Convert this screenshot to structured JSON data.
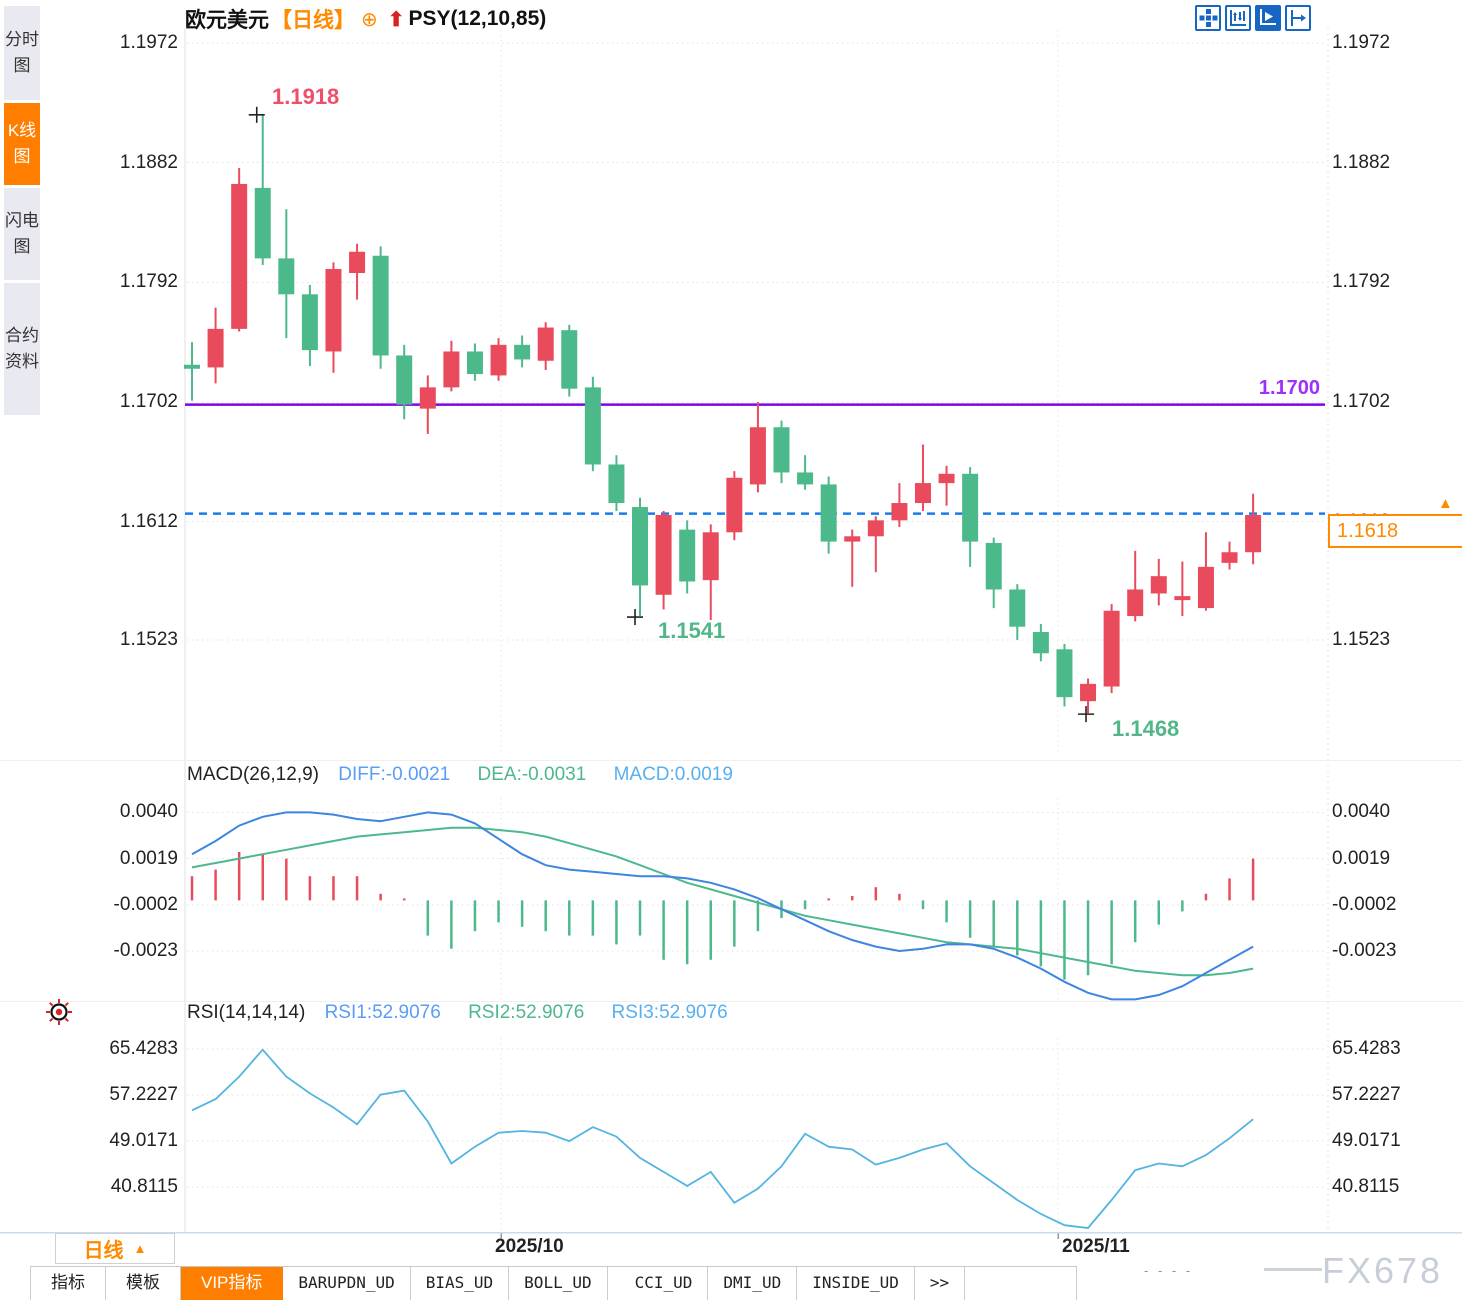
{
  "window_title": {
    "symbol": "欧元美元",
    "period_tag": "【日线】",
    "add_icon": "⊕",
    "psy_arrow": "⬆",
    "overlay_indicator": "PSY(12,10,85)"
  },
  "sidebar": {
    "tabs": [
      {
        "label": "分时图",
        "active": false
      },
      {
        "label": "K线图",
        "active": true
      },
      {
        "label": "闪电图",
        "active": false
      },
      {
        "label": "合约资料",
        "active": false
      }
    ]
  },
  "toolbar": {
    "icons": [
      "crosshair-icon",
      "axis-range-icon",
      "axis-play-icon",
      "pan-right-icon"
    ]
  },
  "price_panel": {
    "axis_labels": [
      "1.1972",
      "1.1882",
      "1.1792",
      "1.1702",
      "1.1612",
      "1.1523"
    ],
    "high_label": "1.1918",
    "low_label_1": "1.1541",
    "low_label_2": "1.1468",
    "hline_label": "1.1700",
    "current_price": "1.1618",
    "current_arrow": "▲"
  },
  "macd_panel": {
    "title": "MACD(26,12,9)",
    "diff_label": "DIFF:-0.0021",
    "dea_label": "DEA:-0.0031",
    "macd_label": "MACD:0.0019",
    "axis_labels": [
      "0.0040",
      "0.0019",
      "-0.0002",
      "-0.0023"
    ]
  },
  "rsi_panel": {
    "title": "RSI(14,14,14)",
    "rsi1_label": "RSI1:52.9076",
    "rsi2_label": "RSI2:52.9076",
    "rsi3_label": "RSI3:52.9076",
    "axis_labels": [
      "65.4283",
      "57.2227",
      "49.0171",
      "40.8115"
    ]
  },
  "x_axis": {
    "period_button": "日线",
    "period_arrow": "▲",
    "labels": [
      "2025/10",
      "2025/11"
    ],
    "placeholder_dashes": "- - - -"
  },
  "bottom_tabs": [
    {
      "label": "指标",
      "active": false,
      "mono": false
    },
    {
      "label": "模板",
      "active": false,
      "mono": false
    },
    {
      "label": "VIP指标",
      "active": true,
      "mono": false
    },
    {
      "label": "BARUPDN_UD",
      "active": false,
      "mono": true
    },
    {
      "label": "BIAS_UD",
      "active": false,
      "mono": true
    },
    {
      "label": "BOLL_UD",
      "active": false,
      "mono": true
    },
    {
      "label": "CCI_UD",
      "active": false,
      "mono": true
    },
    {
      "label": "DMI_UD",
      "active": false,
      "mono": true
    },
    {
      "label": "INSIDE_UD",
      "active": false,
      "mono": true
    },
    {
      "label": ">>",
      "active": false,
      "mono": true
    }
  ],
  "watermark": "FX678",
  "colors": {
    "up_candle": "#ea4b5c",
    "down_candle": "#4cb98a",
    "diff_line": "#3d85e0",
    "dea_line": "#4db88c",
    "rsi_line": "#52b5e0",
    "purple_level": "#7d05e6",
    "current_price_line": "#1a7ce8",
    "accent_orange": "#ff8a00",
    "high_label": "#ef5068",
    "low_label": "#52b788",
    "active_tab": "#ff7e00"
  },
  "chart_data": {
    "type": "candlestick",
    "title": "欧元美元 日线 (EUR/USD daily)",
    "color_convention": "red = up candle, green = down candle",
    "price_axis": [
      1.1972,
      1.1882,
      1.1792,
      1.1702,
      1.1612,
      1.1523
    ],
    "x_gridline_labels": [
      "2025/10",
      "2025/11"
    ],
    "levels": {
      "horizontal_line": 1.17,
      "current_price": 1.1618,
      "marked_high": 1.1918,
      "marked_low_1": 1.1541,
      "marked_low_2": 1.1468
    },
    "candles_ohlc": [
      [
        1.173,
        1.1747,
        1.1703,
        1.1727
      ],
      [
        1.1728,
        1.1773,
        1.1716,
        1.1757
      ],
      [
        1.1757,
        1.1878,
        1.1755,
        1.1866
      ],
      [
        1.1863,
        1.1918,
        1.1805,
        1.181
      ],
      [
        1.181,
        1.1847,
        1.175,
        1.1783
      ],
      [
        1.1783,
        1.179,
        1.1729,
        1.1741
      ],
      [
        1.174,
        1.1807,
        1.1724,
        1.1802
      ],
      [
        1.1799,
        1.1821,
        1.1779,
        1.1815
      ],
      [
        1.1812,
        1.1819,
        1.1727,
        1.1737
      ],
      [
        1.1737,
        1.1745,
        1.1689,
        1.17
      ],
      [
        1.1697,
        1.1722,
        1.1678,
        1.1713
      ],
      [
        1.1713,
        1.1748,
        1.171,
        1.174
      ],
      [
        1.174,
        1.1746,
        1.1718,
        1.1723
      ],
      [
        1.1722,
        1.175,
        1.1718,
        1.1745
      ],
      [
        1.1745,
        1.1752,
        1.1728,
        1.1734
      ],
      [
        1.1733,
        1.1762,
        1.1726,
        1.1758
      ],
      [
        1.1756,
        1.176,
        1.1706,
        1.1712
      ],
      [
        1.1713,
        1.1721,
        1.165,
        1.1655
      ],
      [
        1.1655,
        1.1662,
        1.162,
        1.1626
      ],
      [
        1.1623,
        1.163,
        1.1541,
        1.1564
      ],
      [
        1.1557,
        1.162,
        1.1546,
        1.1617
      ],
      [
        1.1606,
        1.1613,
        1.1558,
        1.1567
      ],
      [
        1.1568,
        1.161,
        1.1538,
        1.1604
      ],
      [
        1.1604,
        1.165,
        1.1598,
        1.1645
      ],
      [
        1.164,
        1.1702,
        1.1634,
        1.1683
      ],
      [
        1.1683,
        1.1688,
        1.1641,
        1.1649
      ],
      [
        1.1649,
        1.1662,
        1.1636,
        1.164
      ],
      [
        1.164,
        1.1646,
        1.1588,
        1.1597
      ],
      [
        1.1597,
        1.1606,
        1.1563,
        1.1601
      ],
      [
        1.1601,
        1.1616,
        1.1574,
        1.1613
      ],
      [
        1.1613,
        1.1641,
        1.1608,
        1.1626
      ],
      [
        1.1626,
        1.167,
        1.162,
        1.1641
      ],
      [
        1.1641,
        1.1654,
        1.1624,
        1.1648
      ],
      [
        1.1648,
        1.1653,
        1.1578,
        1.1597
      ],
      [
        1.1596,
        1.16,
        1.1547,
        1.1561
      ],
      [
        1.1561,
        1.1565,
        1.1523,
        1.1533
      ],
      [
        1.1529,
        1.1535,
        1.1507,
        1.1513
      ],
      [
        1.1516,
        1.152,
        1.1473,
        1.148
      ],
      [
        1.1477,
        1.1494,
        1.1468,
        1.149
      ],
      [
        1.1488,
        1.155,
        1.1483,
        1.1545
      ],
      [
        1.1541,
        1.159,
        1.1537,
        1.1561
      ],
      [
        1.1558,
        1.1584,
        1.1549,
        1.1571
      ],
      [
        1.1553,
        1.1582,
        1.1541,
        1.1556
      ],
      [
        1.1547,
        1.1604,
        1.1545,
        1.1578
      ],
      [
        1.1581,
        1.1597,
        1.1576,
        1.1589
      ],
      [
        1.1589,
        1.1633,
        1.158,
        1.1617
      ]
    ],
    "macd": {
      "params": [
        26,
        12,
        9
      ],
      "diff": -0.0021,
      "dea": -0.0031,
      "macd": 0.0019,
      "axis": [
        0.004,
        0.0019,
        -0.0002,
        -0.0023
      ],
      "diff_line": [
        0.0021,
        0.0027,
        0.0034,
        0.0038,
        0.004,
        0.004,
        0.0039,
        0.0037,
        0.0036,
        0.0038,
        0.004,
        0.0039,
        0.0035,
        0.0028,
        0.0021,
        0.0016,
        0.0014,
        0.0013,
        0.0012,
        0.0011,
        0.0011,
        0.001,
        0.0008,
        0.0005,
        0.0001,
        -0.0004,
        -0.0009,
        -0.0014,
        -0.0018,
        -0.0021,
        -0.0023,
        -0.0022,
        -0.002,
        -0.002,
        -0.0022,
        -0.0026,
        -0.0031,
        -0.0037,
        -0.0042,
        -0.0045,
        -0.0045,
        -0.0043,
        -0.0039,
        -0.0033,
        -0.0027,
        -0.0021
      ],
      "dea_line": [
        0.0015,
        0.0017,
        0.0019,
        0.0021,
        0.0023,
        0.0025,
        0.0027,
        0.0029,
        0.003,
        0.0031,
        0.0032,
        0.0033,
        0.0033,
        0.0032,
        0.0031,
        0.0029,
        0.0026,
        0.0023,
        0.002,
        0.0016,
        0.0012,
        0.0008,
        0.0005,
        0.0002,
        -0.0001,
        -0.0004,
        -0.0007,
        -0.0009,
        -0.0011,
        -0.0013,
        -0.0015,
        -0.0017,
        -0.0019,
        -0.002,
        -0.0021,
        -0.0022,
        -0.0024,
        -0.0026,
        -0.0028,
        -0.003,
        -0.0032,
        -0.0033,
        -0.0034,
        -0.0034,
        -0.0033,
        -0.0031
      ],
      "histogram": [
        0.0011,
        0.0014,
        0.0022,
        0.0021,
        0.0019,
        0.0011,
        0.0011,
        0.0011,
        0.0003,
        0.0,
        -0.0016,
        -0.0022,
        -0.0014,
        -0.001,
        -0.0012,
        -0.0014,
        -0.0016,
        -0.0016,
        -0.002,
        -0.0016,
        -0.0027,
        -0.0029,
        -0.0027,
        -0.0021,
        -0.0014,
        -0.0008,
        -0.0004,
        0.0,
        0.0002,
        0.0006,
        0.0003,
        -0.0004,
        -0.001,
        -0.0017,
        -0.0021,
        -0.0025,
        -0.003,
        -0.0036,
        -0.0034,
        -0.0029,
        -0.0019,
        -0.0011,
        -0.0005,
        0.0003,
        0.001,
        0.0019
      ]
    },
    "rsi": {
      "params": [
        14,
        14,
        14
      ],
      "rsi1": 52.9076,
      "rsi2": 52.9076,
      "rsi3": 52.9076,
      "axis": [
        65.4283,
        57.2227,
        49.0171,
        40.8115
      ],
      "line": [
        54.5,
        56.5,
        60.5,
        65.3,
        60.5,
        57.5,
        55.0,
        52.0,
        57.3,
        58.0,
        52.5,
        45.0,
        48.0,
        50.5,
        50.8,
        50.5,
        49.0,
        51.5,
        49.8,
        46.0,
        43.5,
        41.0,
        43.5,
        38.0,
        40.5,
        44.5,
        50.3,
        48.0,
        47.5,
        44.8,
        46.0,
        47.5,
        48.6,
        44.5,
        41.5,
        38.5,
        36.0,
        34.0,
        33.5,
        38.5,
        43.8,
        45.0,
        44.5,
        46.5,
        49.5,
        52.9
      ]
    }
  }
}
